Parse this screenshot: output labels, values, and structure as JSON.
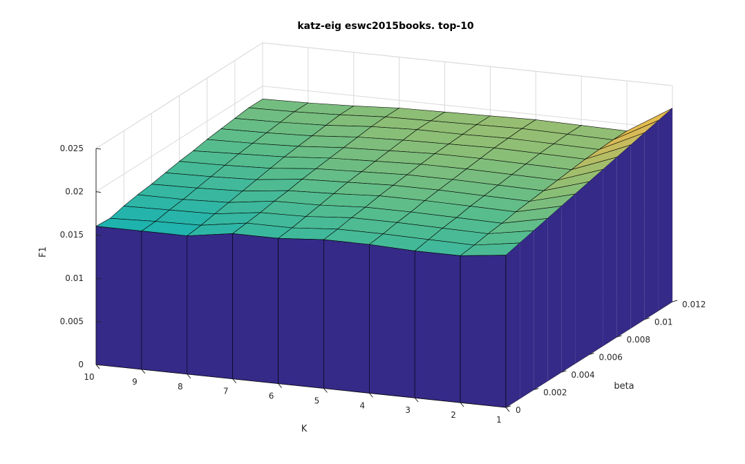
{
  "chart_data": {
    "type": "surface3d",
    "title": "katz-eig eswc2015books. top-10",
    "xlabel": "K",
    "ylabel": "beta",
    "zlabel": "F1",
    "x_ticks": [
      "10",
      "9",
      "8",
      "7",
      "6",
      "5",
      "4",
      "3",
      "2",
      "1"
    ],
    "y_ticks": [
      "0",
      "0.002",
      "0.004",
      "0.006",
      "0.008",
      "0.01",
      "0.012"
    ],
    "z_ticks": [
      "0",
      "0.005",
      "0.01",
      "0.015",
      "0.02",
      "0.025"
    ],
    "xlim": [
      1,
      10
    ],
    "ylim": [
      0,
      0.012
    ],
    "zlim": [
      0,
      0.025
    ],
    "grid": true,
    "colors": {
      "low": "#352a87",
      "high": "#f9fb0e",
      "mid": "#f5ba35",
      "edge": "#000000",
      "grid": "#d9d9d9"
    },
    "K": [
      10,
      9,
      8,
      7,
      6,
      5,
      4,
      3,
      2,
      1
    ],
    "beta": [
      0,
      0.001,
      0.002,
      0.003,
      0.004,
      0.005,
      0.006,
      0.007,
      0.008,
      0.009,
      0.01,
      0.011,
      0.012
    ],
    "F1": [
      [
        0.016,
        0.0159,
        0.0163,
        0.0166,
        0.0168,
        0.0171,
        0.0174,
        0.0176,
        0.0179,
        0.0181,
        0.0183,
        0.0185,
        0.0185
      ],
      [
        0.016,
        0.0161,
        0.0164,
        0.0166,
        0.0169,
        0.0172,
        0.0175,
        0.0178,
        0.018,
        0.0182,
        0.0184,
        0.0186,
        0.0186
      ],
      [
        0.016,
        0.0162,
        0.0165,
        0.0168,
        0.0171,
        0.0174,
        0.0177,
        0.018,
        0.0182,
        0.0184,
        0.0186,
        0.0188,
        0.0188
      ],
      [
        0.0168,
        0.017,
        0.0172,
        0.0175,
        0.0177,
        0.018,
        0.0182,
        0.0184,
        0.0186,
        0.0188,
        0.019,
        0.0191,
        0.0191
      ],
      [
        0.0168,
        0.017,
        0.0173,
        0.0176,
        0.0179,
        0.0182,
        0.0184,
        0.0186,
        0.0188,
        0.019,
        0.0192,
        0.0192,
        0.0192
      ],
      [
        0.0172,
        0.0174,
        0.0177,
        0.0179,
        0.0182,
        0.0184,
        0.0186,
        0.0188,
        0.019,
        0.0191,
        0.0192,
        0.0193,
        0.0193
      ],
      [
        0.0172,
        0.0174,
        0.0177,
        0.0179,
        0.0182,
        0.0184,
        0.0186,
        0.0188,
        0.019,
        0.0192,
        0.0193,
        0.0194,
        0.0194
      ],
      [
        0.017,
        0.0173,
        0.0176,
        0.0178,
        0.0181,
        0.0183,
        0.0185,
        0.0187,
        0.0189,
        0.0191,
        0.0192,
        0.0193,
        0.0193
      ],
      [
        0.017,
        0.0172,
        0.0175,
        0.0177,
        0.018,
        0.0182,
        0.0184,
        0.0186,
        0.0188,
        0.019,
        0.0191,
        0.0192,
        0.0192
      ],
      [
        0.0176,
        0.018,
        0.0184,
        0.0188,
        0.0192,
        0.0196,
        0.02,
        0.0204,
        0.0208,
        0.0212,
        0.0216,
        0.022,
        0.0224
      ]
    ]
  }
}
